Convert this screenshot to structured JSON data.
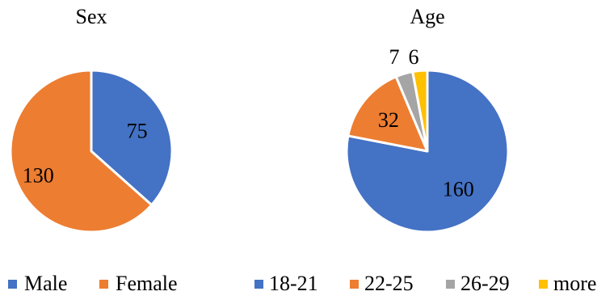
{
  "chart_data": [
    {
      "type": "pie",
      "title": "Sex",
      "categories": [
        "Male",
        "Female"
      ],
      "values": [
        75,
        130
      ],
      "colors": [
        "#4472c4",
        "#ed7d31"
      ],
      "start_angle_deg": 0,
      "direction": "clockwise",
      "legend_placement": "bottom"
    },
    {
      "type": "pie",
      "title": "Age",
      "categories": [
        "18-21",
        "22-25",
        "26-29",
        "more"
      ],
      "values": [
        160,
        32,
        7,
        6
      ],
      "colors": [
        "#4472c4",
        "#ed7d31",
        "#a5a5a5",
        "#ffc000"
      ],
      "start_angle_deg": 0,
      "direction": "clockwise",
      "legend_placement": "bottom"
    }
  ]
}
